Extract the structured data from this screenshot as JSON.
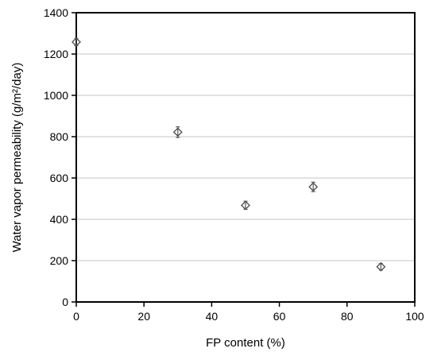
{
  "chart_data": {
    "type": "scatter",
    "xlabel": "FP content (%)",
    "ylabel": "Water vapor permeability (g/m²/day)",
    "xlim": [
      0,
      100
    ],
    "ylim": [
      0,
      1400
    ],
    "x_ticks": [
      0,
      20,
      40,
      60,
      80,
      100
    ],
    "y_ticks": [
      0,
      200,
      400,
      600,
      800,
      1000,
      1200,
      1400
    ],
    "grid": "horizontal",
    "legend": "none",
    "marker": "diamond-with-error-bar",
    "colors": {
      "marker": "#555555",
      "grid": "#d9d9d9",
      "axis": "#000000"
    },
    "series": [
      {
        "x": [
          0,
          30,
          50,
          70,
          90
        ],
        "y": [
          1258,
          822,
          468,
          557,
          170
        ],
        "error": [
          10,
          18,
          12,
          15,
          8
        ]
      }
    ]
  }
}
